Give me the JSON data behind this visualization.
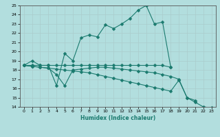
{
  "xlabel": "Humidex (Indice chaleur)",
  "background_color": "#b2dede",
  "grid_color": "#c8ecec",
  "line_color": "#1a7a6e",
  "x_values": [
    0,
    1,
    2,
    3,
    4,
    5,
    6,
    7,
    8,
    9,
    10,
    11,
    12,
    13,
    14,
    15,
    16,
    17,
    18,
    19,
    20,
    21,
    22,
    23
  ],
  "series1": [
    18.5,
    19.0,
    18.5,
    18.5,
    16.3,
    19.8,
    19.0,
    21.5,
    21.8,
    21.6,
    22.9,
    22.5,
    23.0,
    23.6,
    24.5,
    25.0,
    23.0,
    23.2,
    18.3,
    null,
    null,
    null,
    null,
    null
  ],
  "series2": [
    18.5,
    18.5,
    18.5,
    18.5,
    18.5,
    18.5,
    18.5,
    18.5,
    18.5,
    18.5,
    18.5,
    18.5,
    18.5,
    18.5,
    18.5,
    18.5,
    18.5,
    18.5,
    18.3,
    null,
    null,
    null,
    null,
    null
  ],
  "series3": [
    18.5,
    18.4,
    18.3,
    18.2,
    18.1,
    18.0,
    17.9,
    17.8,
    17.7,
    17.5,
    17.3,
    17.1,
    16.9,
    16.7,
    16.5,
    16.3,
    16.1,
    15.9,
    15.7,
    16.9,
    15.0,
    14.7,
    null,
    null
  ],
  "series4": [
    18.5,
    18.4,
    18.3,
    18.2,
    17.5,
    16.3,
    18.0,
    18.1,
    18.2,
    18.3,
    18.3,
    18.2,
    18.1,
    18.0,
    17.9,
    17.8,
    17.7,
    17.5,
    17.3,
    17.0,
    15.0,
    14.5,
    14.0,
    13.9
  ],
  "ylim": [
    14,
    25
  ],
  "xlim_min": -0.5,
  "xlim_max": 23.5,
  "yticks": [
    14,
    15,
    16,
    17,
    18,
    19,
    20,
    21,
    22,
    23,
    24,
    25
  ],
  "xticks": [
    0,
    1,
    2,
    3,
    4,
    5,
    6,
    7,
    8,
    9,
    10,
    11,
    12,
    13,
    14,
    15,
    16,
    17,
    18,
    19,
    20,
    21,
    22,
    23
  ]
}
